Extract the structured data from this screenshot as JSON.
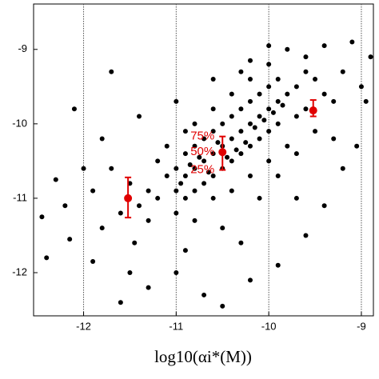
{
  "chart_data": {
    "type": "scatter",
    "xlabel": "log10(αi*(M))",
    "xlim": [
      -12.54,
      -8.87
    ],
    "ylim": [
      -12.58,
      -8.39
    ],
    "xticks": [
      -12,
      -11,
      -10,
      -9
    ],
    "yticks": [
      -12,
      -11,
      -10,
      -9
    ],
    "grid": true,
    "color": "#000000",
    "x": [
      -11.0,
      -10.9,
      -10.8,
      -10.7,
      -10.6,
      -10.5,
      -10.4,
      -10.3,
      -10.2,
      -10.1,
      -10.0,
      -9.9,
      -11.0,
      -10.9,
      -10.8,
      -10.7,
      -10.6,
      -10.5,
      -10.4,
      -10.3,
      -10.2,
      -10.1,
      -10.0,
      -9.9,
      -11.0,
      -10.9,
      -10.8,
      -10.7,
      -10.6,
      -10.5,
      -10.4,
      -10.3,
      -10.2,
      -10.1,
      -10.0,
      -9.9,
      -10.95,
      -10.85,
      -10.75,
      -10.65,
      -10.55,
      -10.45,
      -10.35,
      -10.25,
      -10.15,
      -10.05,
      -9.95,
      -9.85,
      -11.2,
      -11.3,
      -11.4,
      -11.1,
      -11.2,
      -11.3,
      -11.5,
      -11.6,
      -11.7,
      -11.8,
      -9.8,
      -9.7,
      -9.6,
      -9.5,
      -9.4,
      -9.7,
      -9.6,
      -9.5,
      -9.3,
      -9.2,
      -10.6,
      -10.8,
      -10.4,
      -10.2,
      -10.0,
      -10.3,
      -10.9,
      -11.1,
      -10.6,
      -10.4,
      -10.2,
      -10.0,
      -9.8,
      -10.8,
      -10.5,
      -10.1,
      -9.9,
      -9.7,
      -12.45,
      -12.3,
      -12.15,
      -12.0,
      -11.9,
      -11.6,
      -11.3,
      -11.0,
      -10.7,
      -10.5,
      -10.2,
      -9.9,
      -9.6,
      -9.4,
      -9.2,
      -9.05,
      -8.95,
      -8.9,
      -9.1,
      -9.4,
      -9.8,
      -10.2,
      -10.6,
      -11.0,
      -11.4,
      -11.8,
      -12.1,
      -11.7,
      -12.4,
      -11.5,
      -10.9,
      -10.3,
      -9.7,
      -9.3,
      -9.0,
      -11.9,
      -12.2,
      -11.45,
      -10.0,
      -9.6
    ],
    "y": [
      -10.9,
      -10.7,
      -10.6,
      -10.5,
      -10.4,
      -10.3,
      -10.2,
      -10.1,
      -10.0,
      -9.9,
      -9.8,
      -9.7,
      -10.6,
      -10.4,
      -10.3,
      -10.2,
      -10.1,
      -10.0,
      -9.9,
      -9.8,
      -9.7,
      -9.6,
      -9.5,
      -9.4,
      -11.2,
      -11.0,
      -10.9,
      -10.8,
      -10.7,
      -10.6,
      -10.5,
      -10.4,
      -10.3,
      -10.2,
      -10.1,
      -10.0,
      -10.8,
      -10.55,
      -10.45,
      -10.65,
      -10.25,
      -10.45,
      -10.35,
      -10.25,
      -10.05,
      -9.95,
      -9.85,
      -9.75,
      -11.0,
      -10.9,
      -11.1,
      -10.7,
      -10.5,
      -11.3,
      -10.8,
      -11.2,
      -10.6,
      -11.4,
      -9.6,
      -9.5,
      -9.8,
      -9.4,
      -9.6,
      -9.9,
      -9.3,
      -10.1,
      -9.7,
      -9.3,
      -9.8,
      -10.0,
      -9.6,
      -9.4,
      -9.2,
      -9.3,
      -10.1,
      -10.3,
      -11.0,
      -10.9,
      -10.7,
      -10.5,
      -10.3,
      -11.3,
      -11.4,
      -11.0,
      -10.7,
      -10.4,
      -11.25,
      -10.75,
      -11.55,
      -10.6,
      -11.85,
      -12.4,
      -12.2,
      -12.0,
      -12.3,
      -12.45,
      -12.1,
      -11.9,
      -11.5,
      -11.1,
      -10.6,
      -10.3,
      -9.7,
      -9.1,
      -8.9,
      -8.95,
      -9.0,
      -9.15,
      -9.4,
      -9.7,
      -9.9,
      -10.2,
      -9.8,
      -9.3,
      -11.8,
      -12.0,
      -11.7,
      -11.6,
      -11.0,
      -10.2,
      -9.5,
      -10.9,
      -11.1,
      -11.6,
      -8.95,
      -9.1
    ],
    "error_bars": {
      "color": "#e00000",
      "x": [
        -11.52,
        -10.5,
        -9.52
      ],
      "median": [
        -11.0,
        -10.38,
        -9.82
      ],
      "lower": [
        -11.26,
        -10.62,
        -9.9
      ],
      "upper": [
        -10.72,
        -10.17,
        -9.68
      ]
    },
    "annotations": [
      "75%",
      "50%",
      "25%"
    ]
  }
}
